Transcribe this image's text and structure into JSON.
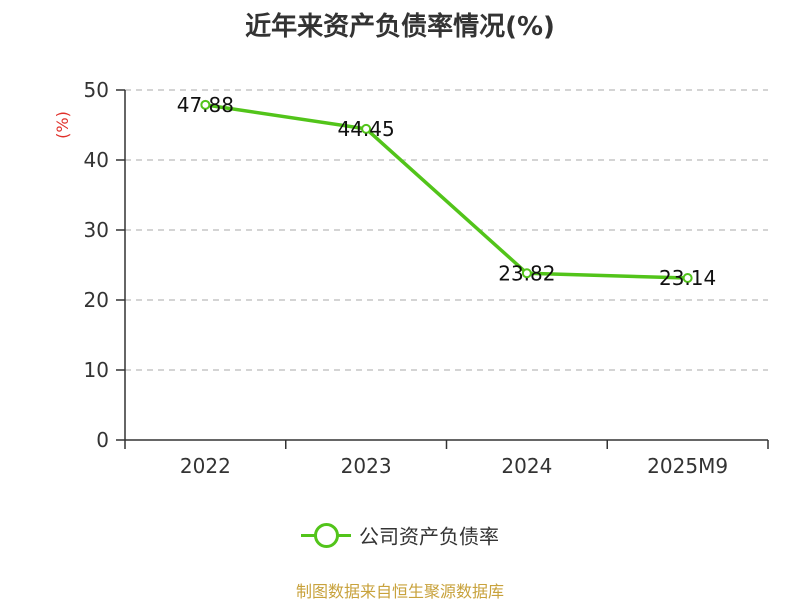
{
  "chart_data": {
    "type": "line",
    "title": "近年来资产负债率情况(%)",
    "ylabel": "(%)",
    "xlabel": "",
    "categories": [
      "2022",
      "2023",
      "2024",
      "2025M9"
    ],
    "series": [
      {
        "name": "公司资产负债率",
        "values": [
          47.88,
          44.45,
          23.82,
          23.14
        ],
        "color": "#52c41a"
      }
    ],
    "data_labels": [
      "47.88",
      "44.45",
      "23.82",
      "23.14"
    ],
    "ylim": [
      0,
      50
    ],
    "yticks": [
      0,
      10,
      20,
      30,
      40,
      50
    ],
    "grid": true,
    "legend": "bottom"
  },
  "source": "制图数据来自恒生聚源数据库",
  "colors": {
    "series": "#52c41a",
    "axis": "#333333",
    "grid": "#bbbbbb",
    "ylabel": "#e0302a",
    "source": "#c8a23c"
  }
}
